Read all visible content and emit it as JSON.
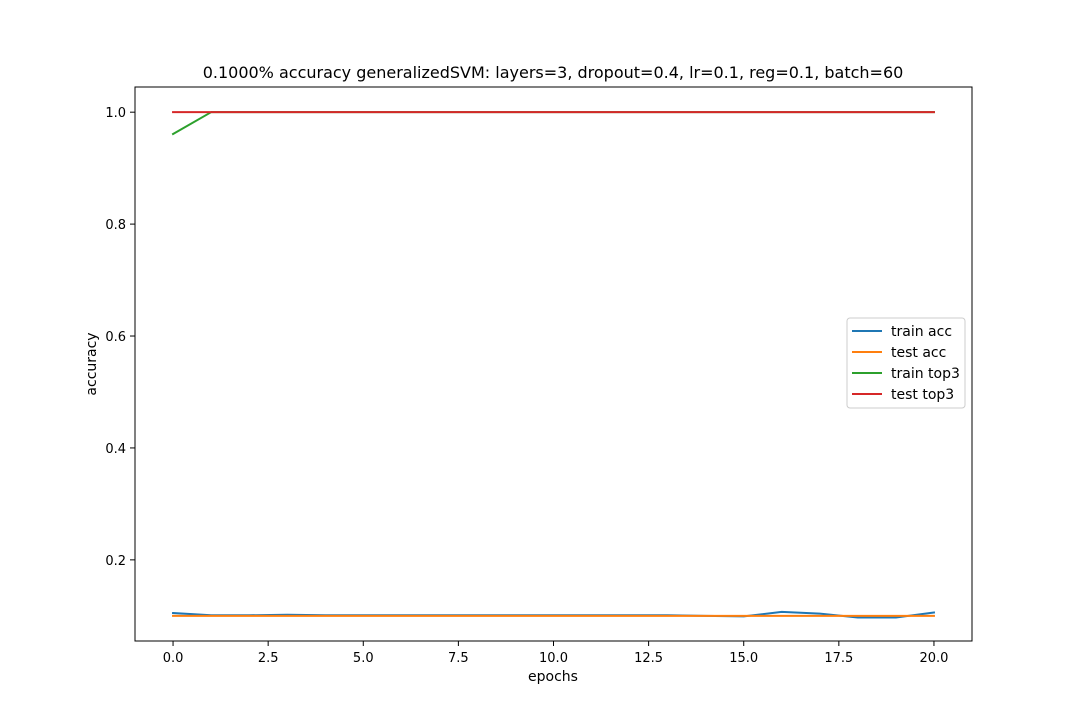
{
  "chart_data": {
    "type": "line",
    "title": "0.1000% accuracy generalizedSVM: layers=3, dropout=0.4, lr=0.1, reg=0.1, batch=60",
    "xlabel": "epochs",
    "ylabel": "accuracy",
    "xlim": [
      -1.0,
      21.0
    ],
    "ylim": [
      0.055,
      1.045
    ],
    "xticks": [
      0.0,
      2.5,
      5.0,
      7.5,
      10.0,
      12.5,
      15.0,
      17.5,
      20.0
    ],
    "xtick_labels": [
      "0.0",
      "2.5",
      "5.0",
      "7.5",
      "10.0",
      "12.5",
      "15.0",
      "17.5",
      "20.0"
    ],
    "yticks": [
      0.2,
      0.4,
      0.6,
      0.8,
      1.0
    ],
    "ytick_labels": [
      "0.2",
      "0.4",
      "0.6",
      "0.8",
      "1.0"
    ],
    "grid": false,
    "legend_position": "center-right",
    "x": [
      0,
      1,
      2,
      3,
      4,
      5,
      6,
      7,
      8,
      9,
      10,
      11,
      12,
      13,
      14,
      15,
      16,
      17,
      18,
      19,
      20
    ],
    "series": [
      {
        "name": "train acc",
        "color": "#1f77b4",
        "values": [
          0.105,
          0.101,
          0.101,
          0.102,
          0.101,
          0.101,
          0.101,
          0.101,
          0.101,
          0.101,
          0.101,
          0.101,
          0.101,
          0.101,
          0.1,
          0.099,
          0.107,
          0.104,
          0.097,
          0.097,
          0.106
        ]
      },
      {
        "name": "test acc",
        "color": "#ff7f0e",
        "values": [
          0.1,
          0.1,
          0.1,
          0.1,
          0.1,
          0.1,
          0.1,
          0.1,
          0.1,
          0.1,
          0.1,
          0.1,
          0.1,
          0.1,
          0.1,
          0.1,
          0.1,
          0.1,
          0.1,
          0.1,
          0.1
        ]
      },
      {
        "name": "train top3",
        "color": "#2ca02c",
        "values": [
          0.961,
          1.0,
          1.0,
          1.0,
          1.0,
          1.0,
          1.0,
          1.0,
          1.0,
          1.0,
          1.0,
          1.0,
          1.0,
          1.0,
          1.0,
          1.0,
          1.0,
          1.0,
          1.0,
          1.0,
          1.0
        ]
      },
      {
        "name": "test top3",
        "color": "#d62728",
        "values": [
          1.0,
          1.0,
          1.0,
          1.0,
          1.0,
          1.0,
          1.0,
          1.0,
          1.0,
          1.0,
          1.0,
          1.0,
          1.0,
          1.0,
          1.0,
          1.0,
          1.0,
          1.0,
          1.0,
          1.0,
          1.0
        ]
      }
    ]
  }
}
